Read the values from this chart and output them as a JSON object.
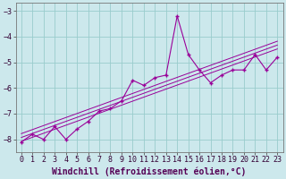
{
  "title": "",
  "xlabel": "Windchill (Refroidissement éolien,°C)",
  "ylabel": "",
  "background_color": "#cce8ec",
  "line_color": "#990099",
  "grid_color": "#99cccc",
  "x": [
    0,
    1,
    2,
    3,
    4,
    5,
    6,
    7,
    8,
    9,
    10,
    11,
    12,
    13,
    14,
    15,
    16,
    17,
    18,
    19,
    20,
    21,
    22,
    23
  ],
  "y": [
    -8.1,
    -7.8,
    -8.0,
    -7.5,
    -8.0,
    -7.6,
    -7.3,
    -6.9,
    -6.8,
    -6.5,
    -5.7,
    -5.9,
    -5.6,
    -5.5,
    -3.2,
    -4.7,
    -5.3,
    -5.8,
    -5.5,
    -5.3,
    -5.3,
    -4.7,
    -5.3,
    -4.8
  ],
  "ylim": [
    -8.5,
    -2.7
  ],
  "xlim": [
    -0.5,
    23.5
  ],
  "yticks": [
    -8,
    -7,
    -6,
    -5,
    -4,
    -3
  ],
  "xticks": [
    0,
    1,
    2,
    3,
    4,
    5,
    6,
    7,
    8,
    9,
    10,
    11,
    12,
    13,
    14,
    15,
    16,
    17,
    18,
    19,
    20,
    21,
    22,
    23
  ],
  "tick_fontsize": 6.0,
  "xlabel_fontsize": 7.0,
  "reg_offsets": [
    0.15,
    0.0,
    -0.15
  ]
}
